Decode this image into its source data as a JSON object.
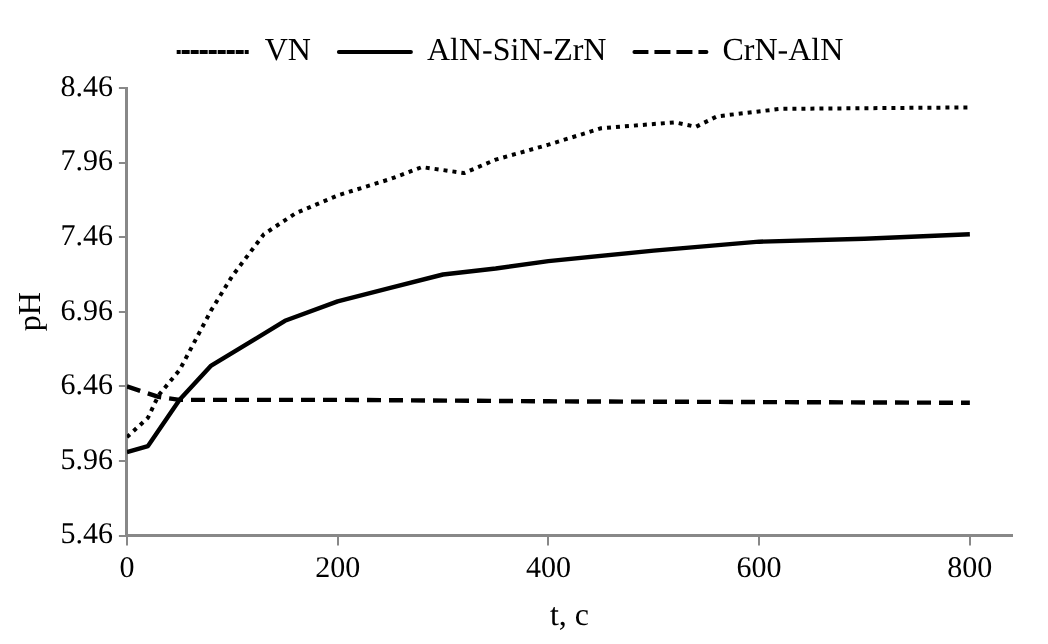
{
  "chart_data": {
    "type": "line",
    "xlabel": "t, c",
    "ylabel": "pH",
    "xlim": [
      0,
      840
    ],
    "xticks": [
      0,
      200,
      400,
      600,
      800
    ],
    "ylim": [
      5.46,
      8.46
    ],
    "yticks": [
      5.46,
      5.96,
      6.46,
      6.96,
      7.46,
      7.96,
      8.46
    ],
    "grid": false,
    "legend": "top",
    "marker": "none",
    "series": [
      {
        "name": "VN",
        "color": "#000000",
        "line_style": "dotted",
        "x": [
          0,
          20,
          30,
          50,
          80,
          100,
          130,
          160,
          200,
          250,
          280,
          320,
          350,
          400,
          450,
          520,
          540,
          560,
          620,
          800
        ],
        "values": [
          6.12,
          6.25,
          6.4,
          6.57,
          6.97,
          7.2,
          7.48,
          7.62,
          7.74,
          7.85,
          7.93,
          7.89,
          7.98,
          8.08,
          8.19,
          8.23,
          8.2,
          8.27,
          8.32,
          8.33
        ]
      },
      {
        "name": "AlN-SiN-ZrN",
        "color": "#000000",
        "line_style": "solid",
        "x": [
          0,
          20,
          50,
          80,
          120,
          150,
          200,
          250,
          300,
          350,
          400,
          500,
          600,
          700,
          800
        ],
        "values": [
          6.02,
          6.06,
          6.37,
          6.6,
          6.77,
          6.9,
          7.03,
          7.12,
          7.21,
          7.25,
          7.3,
          7.37,
          7.43,
          7.45,
          7.48
        ]
      },
      {
        "name": "CrN-AlN",
        "color": "#000000",
        "line_style": "dashed",
        "x": [
          0,
          30,
          50,
          200,
          400,
          800
        ],
        "values": [
          6.46,
          6.39,
          6.37,
          6.37,
          6.36,
          6.35
        ]
      }
    ]
  }
}
